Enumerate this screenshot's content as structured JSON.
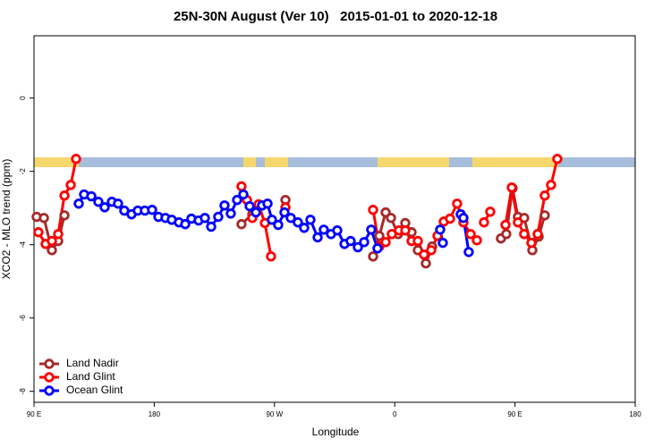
{
  "chart_data": {
    "type": "line",
    "title": "25N-30N August (Ver 10)   2015-01-01 to 2020-12-18",
    "xlabel": "Longitude",
    "ylabel": "XCO2 - MLO trend (ppm)",
    "xlim": [
      90,
      540
    ],
    "xticks": [
      {
        "value": 90,
        "label": "90 E"
      },
      180,
      {
        "value": 270,
        "label": "90 W"
      },
      {
        "value": 360,
        "label": "0"
      },
      {
        "value": 450,
        "label": "90 E"
      },
      {
        "value": 540,
        "label": "180"
      }
    ],
    "ylim": [
      -8.3,
      1.7
    ],
    "yticks": [
      0,
      -2,
      -4,
      -6,
      -8
    ],
    "legend": "bottom-left",
    "series": [
      {
        "name": "Land Nadir",
        "color": "#a52a2a",
        "x": [
          92.0,
          97.4,
          103.4,
          108.1,
          112.8,
          null,
          245.3,
          253.4,
          null,
          278.2,
          null,
          343.8,
          348.5,
          353.2,
          357.2,
          362.5,
          367.9,
          372.6,
          377.3,
          383.3,
          388.0,
          null,
          439.5,
          443.5,
          448.2,
          452.2,
          456.9,
          463.0,
          467.7,
          472.3
        ],
        "values": [
          -3.24,
          -3.27,
          -4.15,
          -3.9,
          -3.2,
          null,
          -3.44,
          -3.17,
          null,
          -2.78,
          null,
          -4.32,
          -3.76,
          -3.12,
          -3.27,
          -3.71,
          -3.41,
          -3.66,
          -4.15,
          -4.51,
          -4.05,
          null,
          -3.83,
          -3.71,
          -2.46,
          -3.24,
          -3.27,
          -4.15,
          -3.78,
          -3.2
        ]
      },
      {
        "name": "Land Glint",
        "color": "#ff0000",
        "x": [
          93.3,
          98.7,
          103.4,
          108.1,
          112.8,
          117.5,
          121.5,
          null,
          245.3,
          249.4,
          253.4,
          258.1,
          262.8,
          267.4,
          null,
          278.2,
          null,
          343.8,
          348.5,
          353.2,
          357.8,
          363.2,
          367.9,
          372.6,
          377.3,
          381.9,
          387.3,
          392.0,
          396.7,
          401.4,
          406.7,
          411.4,
          416.8,
          421.5,
          null,
          426.8,
          431.5,
          null,
          442.9,
          447.6,
          452.2,
          456.9,
          462.3,
          467.0,
          472.3,
          477.0,
          481.7
        ],
        "values": [
          -3.66,
          -3.98,
          -3.9,
          -3.71,
          -2.66,
          -2.37,
          -1.66,
          null,
          -2.41,
          -2.78,
          -3.27,
          -2.9,
          -3.41,
          -4.32,
          null,
          -2.98,
          null,
          -3.05,
          -4.05,
          -3.93,
          -3.71,
          -3.61,
          -3.61,
          -3.9,
          -3.9,
          -4.27,
          -4.15,
          -3.76,
          -3.37,
          -3.29,
          -2.88,
          -3.39,
          -3.71,
          -3.88,
          null,
          -3.39,
          -3.1,
          null,
          -3.46,
          -2.44,
          -3.39,
          -3.71,
          -3.95,
          -3.71,
          -2.66,
          -2.37,
          -1.66
        ]
      },
      {
        "name": "Ocean Glint",
        "color": "#0000ff",
        "x": [
          123.5,
          127.5,
          132.9,
          138.2,
          142.9,
          148.3,
          152.9,
          157.6,
          163.0,
          167.7,
          173.0,
          178.4,
          183.1,
          188.4,
          193.1,
          198.5,
          203.2,
          207.8,
          213.2,
          217.9,
          222.6,
          227.9,
          232.6,
          237.3,
          242.0,
          246.7,
          251.4,
          256.1,
          260.7,
          264.8,
          268.1,
          272.8,
          277.5,
          282.2,
          287.5,
          292.2,
          296.9,
          302.3,
          306.9,
          312.3,
          317.0,
          322.4,
          327.0,
          332.4,
          337.1,
          342.4,
          347.1,
          null,
          394.0,
          396.0,
          null,
          409.4,
          411.4,
          415.4
        ],
        "values": [
          -2.88,
          -2.63,
          -2.68,
          -2.83,
          -2.98,
          -2.83,
          -2.88,
          -3.07,
          -3.17,
          -3.07,
          -3.07,
          -3.05,
          -3.24,
          -3.27,
          -3.32,
          -3.39,
          -3.44,
          -3.29,
          -3.34,
          -3.27,
          -3.51,
          -3.24,
          -2.93,
          -3.15,
          -2.78,
          -2.63,
          -2.95,
          -3.12,
          -2.93,
          -2.88,
          -3.32,
          -3.46,
          -3.12,
          -3.27,
          -3.39,
          -3.54,
          -3.32,
          -3.8,
          -3.59,
          -3.71,
          -3.61,
          -3.98,
          -3.9,
          -4.07,
          -3.93,
          -3.59,
          -4.1,
          null,
          -3.59,
          -3.95,
          null,
          -3.17,
          -3.27,
          -4.2
        ]
      }
    ]
  }
}
